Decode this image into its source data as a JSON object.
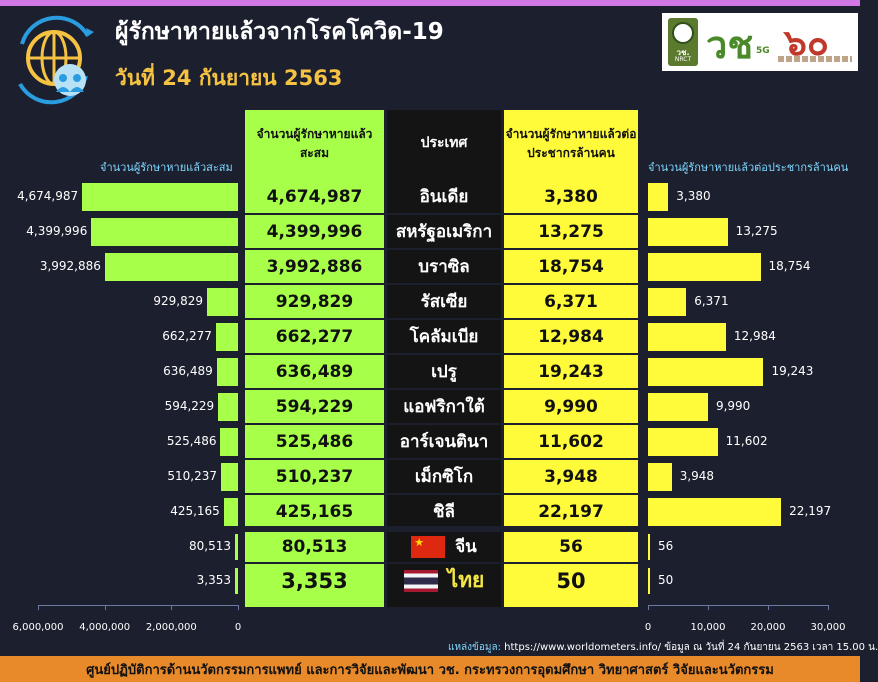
{
  "header": {
    "title": "ผู้รักษาหายแล้วจากโรคโควิด-19",
    "date": "วันที่ 24 กันยายน 2563",
    "logos": {
      "nrct_line1": "วช.",
      "nrct_line2": "NRCT",
      "vch": "วช",
      "vch_badge": "5G",
      "anniv": "๖๐"
    }
  },
  "columns": {
    "total_header": "จำนวนผู้รักษาหายแล้วสะสม",
    "country_header": "ประเทศ",
    "ppm_header": "จำนวนผู้รักษาหายแล้วต่อประชากรล้านคน"
  },
  "chart_data": {
    "type": "bar",
    "categories": [
      "อินเดีย",
      "สหรัฐอเมริกา",
      "บราซิล",
      "รัสเซีย",
      "โคลัมเบีย",
      "เปรู",
      "แอฟริกาใต้",
      "อาร์เจนตินา",
      "เม็กซิโก",
      "ชิลี",
      "จีน",
      "ไทย"
    ],
    "series": [
      {
        "name": "จำนวนผู้รักษาหายแล้วสะสม",
        "values": [
          4674987,
          4399996,
          3992886,
          929829,
          662277,
          636489,
          594229,
          525486,
          510237,
          425165,
          80513,
          3353
        ],
        "labels": [
          "4,674,987",
          "4,399,996",
          "3,992,886",
          "929,829",
          "662,277",
          "636,489",
          "594,229",
          "525,486",
          "510,237",
          "425,165",
          "80,513",
          "3,353"
        ],
        "xlim": [
          0,
          6000000
        ],
        "ticks": [
          "6,000,000",
          "4,000,000",
          "2,000,000",
          "0"
        ],
        "axis_title": "จำนวนผู้รักษาหายแล้วสะสม",
        "color": "#a7ff49"
      },
      {
        "name": "จำนวนผู้รักษาหายแล้วต่อประชากรล้านคน",
        "values": [
          3380,
          13275,
          18754,
          6371,
          12984,
          19243,
          9990,
          11602,
          3948,
          22197,
          56,
          50
        ],
        "labels": [
          "3,380",
          "13,275",
          "18,754",
          "6,371",
          "12,984",
          "19,243",
          "9,990",
          "11,602",
          "3,948",
          "22,197",
          "56",
          "50"
        ],
        "xlim": [
          0,
          30000
        ],
        "ticks": [
          "0",
          "10,000",
          "20,000",
          "30,000"
        ],
        "axis_title": "จำนวนผู้รักษาหายแล้วต่อประชากรล้านคน",
        "color": "#fffb3a"
      }
    ]
  },
  "source": {
    "label": "แหล่งข้อมูล:",
    "text": " https://www.worldometers.info/ ข้อมูล ณ วันที่ 24 กันยายน 2563 เวลา 15.00 น."
  },
  "footer": "ศูนย์ปฏิบัติการด้านนวัตกรรมการแพทย์ และการวิจัยและพัฒนา วช.  กระทรวงการอุดมศึกษา วิทยาศาสตร์ วิจัยและนวัตกรรม"
}
